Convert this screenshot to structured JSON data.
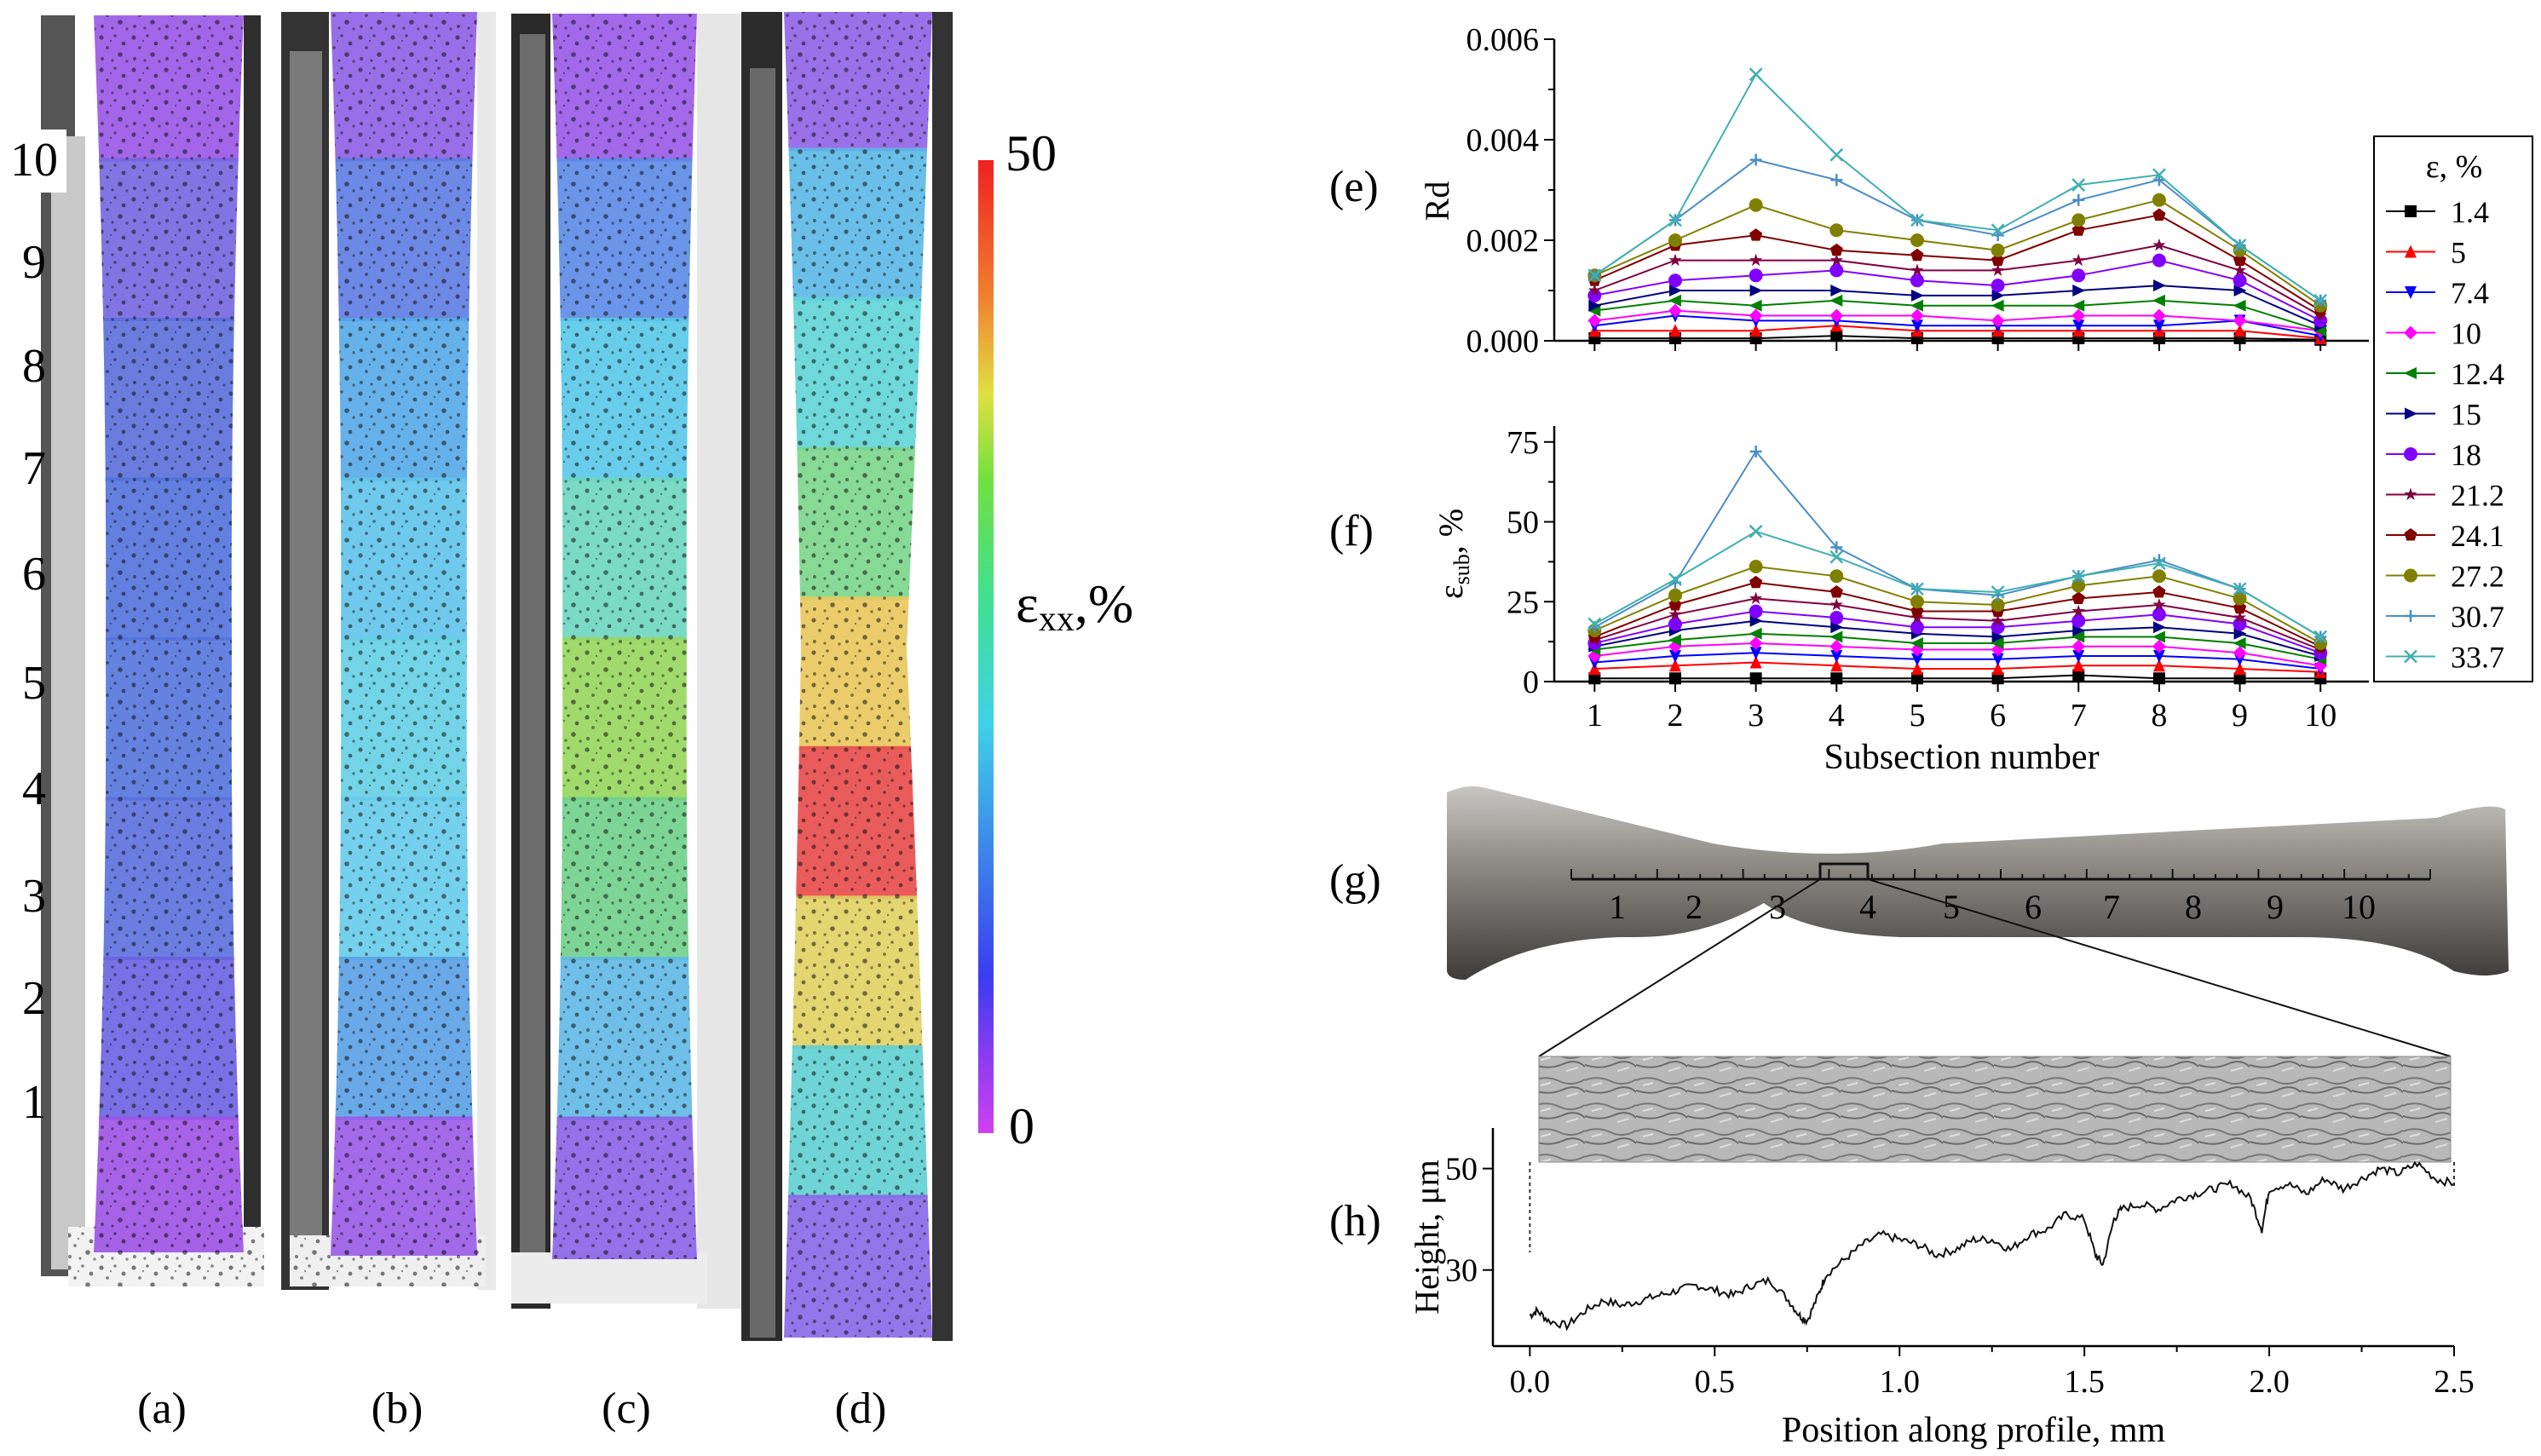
{
  "panel_labels": {
    "a": "(a)",
    "b": "(b)",
    "c": "(c)",
    "d": "(d)",
    "e": "(e)",
    "f": "(f)",
    "g": "(g)",
    "h": "(h)"
  },
  "subsection_numbers": [
    "1",
    "2",
    "3",
    "4",
    "5",
    "6",
    "7",
    "8",
    "9",
    "10"
  ],
  "colorbar": {
    "max_label": "50",
    "min_label": "0",
    "title": "ε",
    "title_sub": "xx",
    "title_unit": ",%"
  },
  "specimen_colors": {
    "a": [
      "#9a55e6",
      "#7466e0",
      "#5a6fdc",
      "#5271dc",
      "#5574dd",
      "#5a70de",
      "#6a62e2",
      "#9c52e6"
    ],
    "b": [
      "#8f5ee6",
      "#5d7be2",
      "#55a8e8",
      "#5fc3ea",
      "#64cfe4",
      "#66cbea",
      "#5aa0e6",
      "#9a5ae8"
    ],
    "c": [
      "#9a58e8",
      "#5a8ae6",
      "#58c8e8",
      "#6bd6c0",
      "#96d65c",
      "#6fd08a",
      "#5fb8e6",
      "#8a62e8"
    ],
    "d": [
      "#8f62e6",
      "#5ab8e6",
      "#5ed4d6",
      "#7ad68a",
      "#e8c85a",
      "#e84a4a",
      "#e0d060",
      "#5fcfd2",
      "#8a66e8"
    ]
  },
  "inset_g": {
    "ticks": [
      "1",
      "2",
      "3",
      "4",
      "5",
      "6",
      "7",
      "8",
      "9",
      "10"
    ]
  },
  "legend": {
    "title": "ε, %",
    "entries": [
      "1.4",
      "5",
      "7.4",
      "10",
      "12.4",
      "15",
      "18",
      "21.2",
      "24.1",
      "27.2",
      "30.7",
      "33.7"
    ],
    "colors": [
      "#000000",
      "#ff0000",
      "#0000ff",
      "#ff00ff",
      "#008000",
      "#000080",
      "#8000ff",
      "#800040",
      "#800000",
      "#808000",
      "#4a8cc8",
      "#40b0b0"
    ],
    "markers": [
      "square",
      "tri-up",
      "tri-down",
      "diamond",
      "tri-left",
      "tri-right",
      "circle",
      "star",
      "pentagon",
      "circle",
      "plus",
      "cross"
    ]
  },
  "chart_data": [
    {
      "id": "e",
      "type": "line",
      "title": "",
      "xlabel": "",
      "ylabel": "Rd",
      "x": [
        1,
        2,
        3,
        4,
        5,
        6,
        7,
        8,
        9,
        10
      ],
      "xlim": [
        0.5,
        10.6
      ],
      "ylim": [
        0,
        0.006
      ],
      "yticks": [
        "0.000",
        "0.002",
        "0.004",
        "0.006"
      ],
      "series": [
        {
          "name": "1.4",
          "values": [
            5e-05,
            5e-05,
            5e-05,
            0.0001,
            5e-05,
            5e-05,
            5e-05,
            5e-05,
            5e-05,
            2e-05
          ]
        },
        {
          "name": "5",
          "values": [
            0.0002,
            0.0002,
            0.0002,
            0.0003,
            0.0002,
            0.0002,
            0.0002,
            0.0002,
            0.0002,
            5e-05
          ]
        },
        {
          "name": "7.4",
          "values": [
            0.0003,
            0.0005,
            0.0004,
            0.0004,
            0.0003,
            0.0003,
            0.0003,
            0.0003,
            0.0004,
            0.0001
          ]
        },
        {
          "name": "10",
          "values": [
            0.0004,
            0.0006,
            0.0005,
            0.0005,
            0.0005,
            0.0004,
            0.0005,
            0.0005,
            0.0004,
            0.0002
          ]
        },
        {
          "name": "12.4",
          "values": [
            0.0006,
            0.0008,
            0.0007,
            0.0008,
            0.0007,
            0.0007,
            0.0007,
            0.0008,
            0.0007,
            0.0002
          ]
        },
        {
          "name": "15",
          "values": [
            0.0007,
            0.001,
            0.001,
            0.001,
            0.0009,
            0.0009,
            0.001,
            0.0011,
            0.001,
            0.0003
          ]
        },
        {
          "name": "18",
          "values": [
            0.0009,
            0.0012,
            0.0013,
            0.0014,
            0.0012,
            0.0011,
            0.0013,
            0.0016,
            0.0012,
            0.0004
          ]
        },
        {
          "name": "21.2",
          "values": [
            0.001,
            0.0016,
            0.0016,
            0.0016,
            0.0014,
            0.0014,
            0.0016,
            0.0019,
            0.0014,
            0.0005
          ]
        },
        {
          "name": "24.1",
          "values": [
            0.0012,
            0.0019,
            0.0021,
            0.0018,
            0.0017,
            0.0016,
            0.0022,
            0.0025,
            0.0016,
            0.0006
          ]
        },
        {
          "name": "27.2",
          "values": [
            0.0013,
            0.002,
            0.0027,
            0.0022,
            0.002,
            0.0018,
            0.0024,
            0.0028,
            0.0018,
            0.0007
          ]
        },
        {
          "name": "30.7",
          "values": [
            0.0013,
            0.0024,
            0.0036,
            0.0032,
            0.0024,
            0.0021,
            0.0028,
            0.0032,
            0.0019,
            0.0008
          ]
        },
        {
          "name": "33.7",
          "values": [
            0.0013,
            0.0024,
            0.0053,
            0.0037,
            0.0024,
            0.0022,
            0.0031,
            0.0033,
            0.0019,
            0.0008
          ]
        }
      ]
    },
    {
      "id": "f",
      "type": "line",
      "title": "",
      "xlabel": "Subsection number",
      "ylabel": "ε",
      "ylabel_sub": "sub",
      "ylabel_unit": ", %",
      "x": [
        1,
        2,
        3,
        4,
        5,
        6,
        7,
        8,
        9,
        10
      ],
      "xlim": [
        0.5,
        10.6
      ],
      "ylim": [
        0,
        80
      ],
      "yticks": [
        "0",
        "25",
        "50",
        "75"
      ],
      "xticks": [
        "1",
        "2",
        "3",
        "4",
        "5",
        "6",
        "7",
        "8",
        "9",
        "10"
      ],
      "series": [
        {
          "name": "1.4",
          "values": [
            1,
            1,
            1,
            1,
            1,
            1,
            2,
            1,
            1,
            1
          ]
        },
        {
          "name": "5",
          "values": [
            4,
            5,
            6,
            5,
            4,
            4,
            5,
            5,
            4,
            3
          ]
        },
        {
          "name": "7.4",
          "values": [
            6,
            8,
            9,
            8,
            7,
            7,
            8,
            8,
            7,
            4
          ]
        },
        {
          "name": "10",
          "values": [
            8,
            11,
            12,
            11,
            10,
            10,
            11,
            11,
            9,
            5
          ]
        },
        {
          "name": "12.4",
          "values": [
            10,
            13,
            15,
            14,
            12,
            12,
            14,
            14,
            12,
            7
          ]
        },
        {
          "name": "15",
          "values": [
            11,
            16,
            19,
            17,
            15,
            14,
            16,
            17,
            15,
            8
          ]
        },
        {
          "name": "18",
          "values": [
            12,
            18,
            22,
            20,
            17,
            17,
            19,
            21,
            18,
            9
          ]
        },
        {
          "name": "21.2",
          "values": [
            13,
            21,
            26,
            24,
            20,
            19,
            22,
            24,
            20,
            10
          ]
        },
        {
          "name": "24.1",
          "values": [
            14,
            24,
            31,
            28,
            22,
            22,
            26,
            28,
            23,
            11
          ]
        },
        {
          "name": "27.2",
          "values": [
            16,
            27,
            36,
            33,
            25,
            24,
            30,
            33,
            26,
            12
          ]
        },
        {
          "name": "30.7",
          "values": [
            17,
            31,
            72,
            42,
            29,
            27,
            33,
            38,
            29,
            14
          ]
        },
        {
          "name": "33.7",
          "values": [
            18,
            32,
            47,
            39,
            29,
            28,
            33,
            37,
            29,
            14
          ]
        }
      ]
    },
    {
      "id": "h",
      "type": "line",
      "title": "",
      "xlabel": "Position along profile, mm",
      "ylabel": "Height, μm",
      "xlim": [
        -0.1,
        2.5
      ],
      "ylim": [
        15,
        58
      ],
      "xticks": [
        "0.0",
        "0.5",
        "1.0",
        "1.5",
        "2.0",
        "2.5"
      ],
      "yticks": [
        "30",
        "50"
      ],
      "x": [
        0,
        0.02,
        0.05,
        0.1,
        0.15,
        0.2,
        0.25,
        0.3,
        0.35,
        0.4,
        0.45,
        0.5,
        0.55,
        0.6,
        0.65,
        0.7,
        0.73,
        0.75,
        0.78,
        0.8,
        0.85,
        0.9,
        0.95,
        1.0,
        1.05,
        1.1,
        1.15,
        1.2,
        1.25,
        1.3,
        1.35,
        1.4,
        1.45,
        1.5,
        1.53,
        1.55,
        1.58,
        1.6,
        1.65,
        1.7,
        1.75,
        1.8,
        1.85,
        1.9,
        1.95,
        1.98,
        2.0,
        2.05,
        2.1,
        2.15,
        2.2,
        2.25,
        2.3,
        2.35,
        2.4,
        2.45,
        2.5
      ],
      "values": [
        21,
        22,
        20,
        19,
        22,
        24,
        23,
        24,
        25,
        26,
        27,
        26,
        25,
        27,
        28,
        24,
        21,
        20,
        25,
        29,
        32,
        35,
        37,
        36,
        35,
        33,
        34,
        36,
        36,
        34,
        37,
        38,
        41,
        40,
        33,
        31,
        40,
        42,
        43,
        42,
        44,
        45,
        46,
        47,
        44,
        38,
        46,
        47,
        45,
        48,
        46,
        48,
        50,
        49,
        51,
        48,
        47
      ]
    }
  ]
}
